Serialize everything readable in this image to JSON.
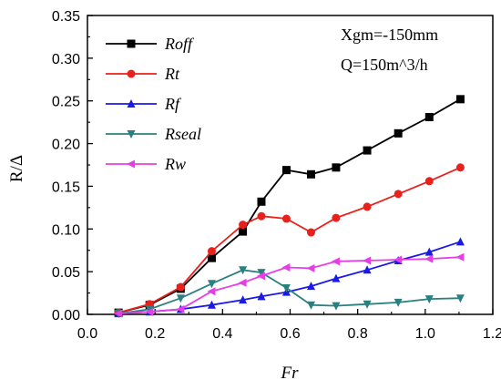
{
  "chart_data": {
    "type": "line",
    "xlabel": "Fr",
    "ylabel": "R/Δ",
    "xlim": [
      0.0,
      1.2
    ],
    "ylim": [
      0.0,
      0.35
    ],
    "xticks": [
      "0.0",
      "0.2",
      "0.4",
      "0.6",
      "0.8",
      "1.0",
      "1.2"
    ],
    "yticks": [
      "0.00",
      "0.05",
      "0.10",
      "0.15",
      "0.20",
      "0.25",
      "0.30",
      "0.35"
    ],
    "annotations": [
      "Xgm=-150mm",
      "Q=150m^3/h"
    ],
    "legend_position": "top-left",
    "grid": false,
    "x": [
      0.092,
      0.184,
      0.276,
      0.368,
      0.46,
      0.515,
      0.589,
      0.662,
      0.736,
      0.828,
      0.92,
      1.012,
      1.104
    ],
    "series": [
      {
        "name": "Roff",
        "color": "#000000",
        "marker": "square",
        "values": [
          0.002,
          0.011,
          0.03,
          0.066,
          0.097,
          0.132,
          0.169,
          0.164,
          0.172,
          0.192,
          0.212,
          0.231,
          0.252
        ]
      },
      {
        "name": "Rt",
        "color": "#e8211c",
        "marker": "circle",
        "values": [
          0.002,
          0.012,
          0.032,
          0.074,
          0.105,
          0.115,
          0.112,
          0.096,
          0.113,
          0.126,
          0.141,
          0.156,
          0.172
        ]
      },
      {
        "name": "Rf",
        "color": "#1a1ae6",
        "marker": "triangle-up",
        "values": [
          0.001,
          0.003,
          0.006,
          0.011,
          0.017,
          0.021,
          0.026,
          0.033,
          0.042,
          0.052,
          0.063,
          0.073,
          0.085
        ]
      },
      {
        "name": "Rseal",
        "color": "#2a8080",
        "marker": "triangle-down",
        "values": [
          0.001,
          0.006,
          0.019,
          0.036,
          0.052,
          0.049,
          0.031,
          0.011,
          0.01,
          0.012,
          0.014,
          0.018,
          0.019
        ]
      },
      {
        "name": "Rw",
        "color": "#e63ee6",
        "marker": "triangle-left",
        "values": [
          0.001,
          0.003,
          0.006,
          0.027,
          0.037,
          0.045,
          0.055,
          0.054,
          0.062,
          0.063,
          0.064,
          0.065,
          0.067
        ]
      }
    ]
  }
}
